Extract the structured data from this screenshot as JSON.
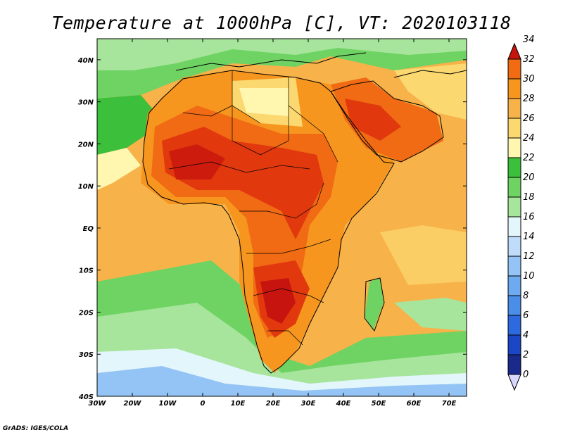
{
  "title": "Temperature at 1000hPa [C], VT: 2020103118",
  "credit": "GrADS: IGES/COLA",
  "map": {
    "lon_range": [
      -30,
      75
    ],
    "lat_range": [
      -40,
      45
    ],
    "lon_ticks": [
      {
        "value": -30,
        "label": "30W"
      },
      {
        "value": -20,
        "label": "20W"
      },
      {
        "value": -10,
        "label": "10W"
      },
      {
        "value": 0,
        "label": "0"
      },
      {
        "value": 10,
        "label": "10E"
      },
      {
        "value": 20,
        "label": "20E"
      },
      {
        "value": 30,
        "label": "30E"
      },
      {
        "value": 40,
        "label": "40E"
      },
      {
        "value": 50,
        "label": "50E"
      },
      {
        "value": 60,
        "label": "60E"
      },
      {
        "value": 70,
        "label": "70E"
      }
    ],
    "lat_ticks": [
      {
        "value": 40,
        "label": "40N"
      },
      {
        "value": 30,
        "label": "30N"
      },
      {
        "value": 20,
        "label": "20N"
      },
      {
        "value": 10,
        "label": "10N"
      },
      {
        "value": 0,
        "label": "EQ"
      },
      {
        "value": -10,
        "label": "10S"
      },
      {
        "value": -20,
        "label": "20S"
      },
      {
        "value": -30,
        "label": "30S"
      },
      {
        "value": -40,
        "label": "40S"
      }
    ]
  },
  "colorbar": {
    "levels": [
      0,
      2,
      4,
      6,
      8,
      10,
      12,
      14,
      16,
      18,
      20,
      22,
      24,
      26,
      28,
      30,
      32,
      34
    ],
    "colors": [
      "#1a2a8a",
      "#1b47c6",
      "#2d6ae0",
      "#4a8ee8",
      "#6daaf0",
      "#94c4f5",
      "#bfdcfa",
      "#e3f6fb",
      "#a7e59c",
      "#6ed363",
      "#3cbf3a",
      "#fff6b0",
      "#fbd870",
      "#f8b24a",
      "#f7961f",
      "#f06b13",
      "#e1380e",
      "#c8140e"
    ]
  }
}
